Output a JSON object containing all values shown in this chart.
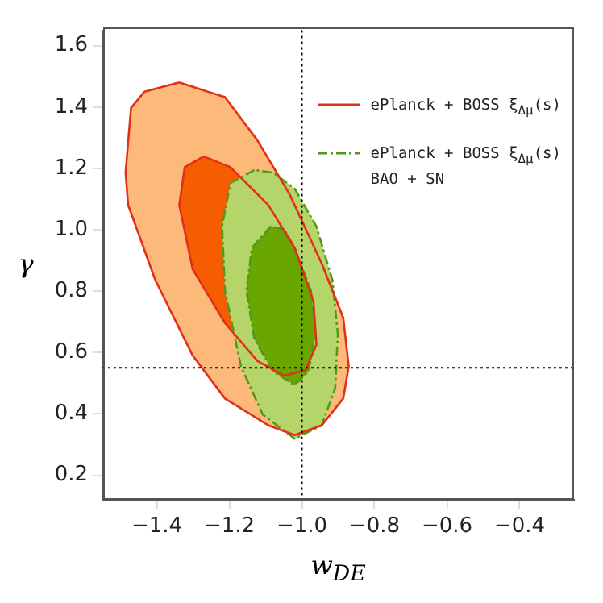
{
  "chart_data": {
    "type": "area",
    "xlabel": "w$_{DE}$",
    "ylabel": "γ",
    "xlim": [
      -1.55,
      -0.25
    ],
    "xticks": [
      -1.4,
      -1.2,
      {
        "value": -1.0,
        "label": "−1.0"
      },
      -0.8,
      -0.6,
      -0.4
    ],
    "ylim": [
      0.12,
      1.65
    ],
    "yticks": [
      0.2,
      0.4,
      0.6,
      0.8,
      {
        "value": 1.0,
        "label": "1.0"
      },
      1.2,
      1.4,
      1.6
    ],
    "grid": false,
    "legend": "top right",
    "marker": "none",
    "ref_lines": [
      {
        "axis": "x",
        "value": -1.0,
        "line_style": "dotted",
        "color": "#000000"
      },
      {
        "axis": "y",
        "value": 0.55,
        "line_style": "dotted",
        "color": "#000000"
      }
    ],
    "series": [
      {
        "name": "ePlanck + BOSS ξ$_{Δμ}$(s)",
        "color": "#fdb97a",
        "line_style": "solid",
        "x": [
          -1.338,
          -1.434,
          -1.471,
          -1.486,
          -1.479,
          -1.404,
          -1.301,
          -1.212,
          -1.093,
          -1.02,
          -0.945,
          -0.886,
          -0.871,
          -0.886,
          -0.945,
          -1.034,
          -1.123,
          -1.212,
          -1.338
        ],
        "values": [
          1.48,
          1.45,
          1.397,
          1.186,
          1.081,
          0.836,
          0.59,
          0.45,
          0.363,
          0.331,
          0.363,
          0.45,
          0.555,
          0.713,
          0.889,
          1.116,
          1.292,
          1.432,
          1.48
        ]
      },
      {
        "color": "#f55d00",
        "line_style": "solid",
        "x": [
          -1.271,
          -1.323,
          -1.338,
          -1.301,
          -1.212,
          -1.123,
          -1.049,
          -0.99,
          -0.96,
          -0.968,
          -1.02,
          -1.093,
          -1.197,
          -1.271
        ],
        "values": [
          1.239,
          1.204,
          1.081,
          0.871,
          0.696,
          0.573,
          0.524,
          0.542,
          0.626,
          0.766,
          0.941,
          1.081,
          1.204,
          1.239
        ]
      },
      {
        "name": "ePlanck + BOSS ξ$_{Δμ}$(s)\nBAO + SN",
        "color": "#b5d56a",
        "line_style": "dashed",
        "x": [
          -1.131,
          -1.197,
          -1.22,
          -1.212,
          -1.168,
          -1.108,
          -1.02,
          -0.945,
          -0.908,
          -0.901,
          -0.916,
          -0.96,
          -1.02,
          -1.079,
          -1.131
        ],
        "values": [
          1.195,
          1.152,
          1.011,
          0.801,
          0.555,
          0.398,
          0.319,
          0.363,
          0.485,
          0.661,
          0.836,
          1.011,
          1.134,
          1.186,
          1.195
        ]
      },
      {
        "color": "#6aa600",
        "line_style": "dashed",
        "x": [
          -1.086,
          -1.138,
          -1.153,
          -1.131,
          -1.079,
          -1.02,
          -0.982,
          -0.963,
          -0.975,
          -1.02,
          -1.049,
          -1.086
        ],
        "values": [
          1.011,
          0.941,
          0.801,
          0.643,
          0.538,
          0.494,
          0.538,
          0.661,
          0.801,
          0.941,
          1.002,
          1.011
        ]
      }
    ]
  }
}
